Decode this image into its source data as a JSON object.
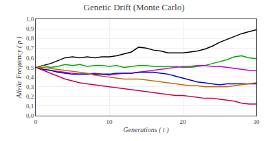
{
  "chart_data": {
    "type": "line",
    "title": "Genetic Drift (Monte Carlo)",
    "xlabel": "Generations ( t )",
    "ylabel": "Allelic Frequency ( p )",
    "x": [
      0,
      1,
      2,
      3,
      4,
      5,
      6,
      7,
      8,
      9,
      10,
      11,
      12,
      13,
      14,
      15,
      16,
      17,
      18,
      19,
      20,
      21,
      22,
      23,
      24,
      25,
      26,
      27,
      28,
      29,
      30
    ],
    "series": [
      {
        "color": "#000000",
        "values": [
          0.5,
          0.52,
          0.54,
          0.57,
          0.6,
          0.61,
          0.6,
          0.61,
          0.6,
          0.61,
          0.61,
          0.62,
          0.64,
          0.66,
          0.71,
          0.7,
          0.68,
          0.67,
          0.65,
          0.65,
          0.65,
          0.66,
          0.67,
          0.69,
          0.72,
          0.76,
          0.79,
          0.82,
          0.85,
          0.87,
          0.89
        ]
      },
      {
        "color": "#00aa00",
        "values": [
          0.5,
          0.52,
          0.5,
          0.51,
          0.53,
          0.52,
          0.53,
          0.51,
          0.52,
          0.52,
          0.51,
          0.52,
          0.5,
          0.51,
          0.52,
          0.52,
          0.51,
          0.51,
          0.51,
          0.51,
          0.5,
          0.5,
          0.51,
          0.52,
          0.54,
          0.56,
          0.58,
          0.61,
          0.62,
          0.6,
          0.59
        ]
      },
      {
        "color": "#cc00cc",
        "values": [
          0.5,
          0.48,
          0.47,
          0.46,
          0.45,
          0.44,
          0.43,
          0.43,
          0.44,
          0.43,
          0.42,
          0.43,
          0.44,
          0.44,
          0.45,
          0.46,
          0.47,
          0.48,
          0.49,
          0.5,
          0.51,
          0.51,
          0.52,
          0.52,
          0.51,
          0.51,
          0.5,
          0.49,
          0.48,
          0.47,
          0.47
        ]
      },
      {
        "color": "#0000cc",
        "values": [
          0.5,
          0.48,
          0.47,
          0.45,
          0.44,
          0.43,
          0.43,
          0.43,
          0.43,
          0.43,
          0.43,
          0.44,
          0.44,
          0.44,
          0.45,
          0.45,
          0.45,
          0.44,
          0.43,
          0.41,
          0.39,
          0.37,
          0.35,
          0.34,
          0.33,
          0.32,
          0.33,
          0.33,
          0.33,
          0.33,
          0.33
        ]
      },
      {
        "color": "#cc6600",
        "values": [
          0.5,
          0.5,
          0.49,
          0.48,
          0.47,
          0.46,
          0.45,
          0.44,
          0.42,
          0.41,
          0.4,
          0.39,
          0.38,
          0.38,
          0.38,
          0.37,
          0.36,
          0.35,
          0.34,
          0.33,
          0.32,
          0.31,
          0.31,
          0.3,
          0.3,
          0.3,
          0.3,
          0.31,
          0.32,
          0.33,
          0.34
        ]
      },
      {
        "color": "#cc0044",
        "values": [
          0.5,
          0.47,
          0.44,
          0.41,
          0.38,
          0.36,
          0.34,
          0.33,
          0.32,
          0.31,
          0.3,
          0.29,
          0.28,
          0.27,
          0.26,
          0.25,
          0.24,
          0.23,
          0.22,
          0.21,
          0.21,
          0.2,
          0.19,
          0.18,
          0.18,
          0.17,
          0.16,
          0.15,
          0.13,
          0.12,
          0.12
        ]
      }
    ],
    "xlim": [
      0,
      30
    ],
    "xticks": [
      0,
      10,
      20,
      30
    ],
    "ylim": [
      0.0,
      1.0
    ],
    "yticks": [
      {
        "value": 0.0,
        "label": "0,0"
      },
      {
        "value": 0.1,
        "label": "0,1"
      },
      {
        "value": 0.2,
        "label": "0,2"
      },
      {
        "value": 0.3,
        "label": "0,3"
      },
      {
        "value": 0.4,
        "label": "0,4"
      },
      {
        "value": 0.5,
        "label": "0,5"
      },
      {
        "value": 0.6,
        "label": "0,6"
      },
      {
        "value": 0.7,
        "label": "0,7"
      },
      {
        "value": 0.8,
        "label": "0,8"
      },
      {
        "value": 0.9,
        "label": "0,9"
      },
      {
        "value": 1.0,
        "label": "1,0"
      }
    ],
    "grid": true
  }
}
